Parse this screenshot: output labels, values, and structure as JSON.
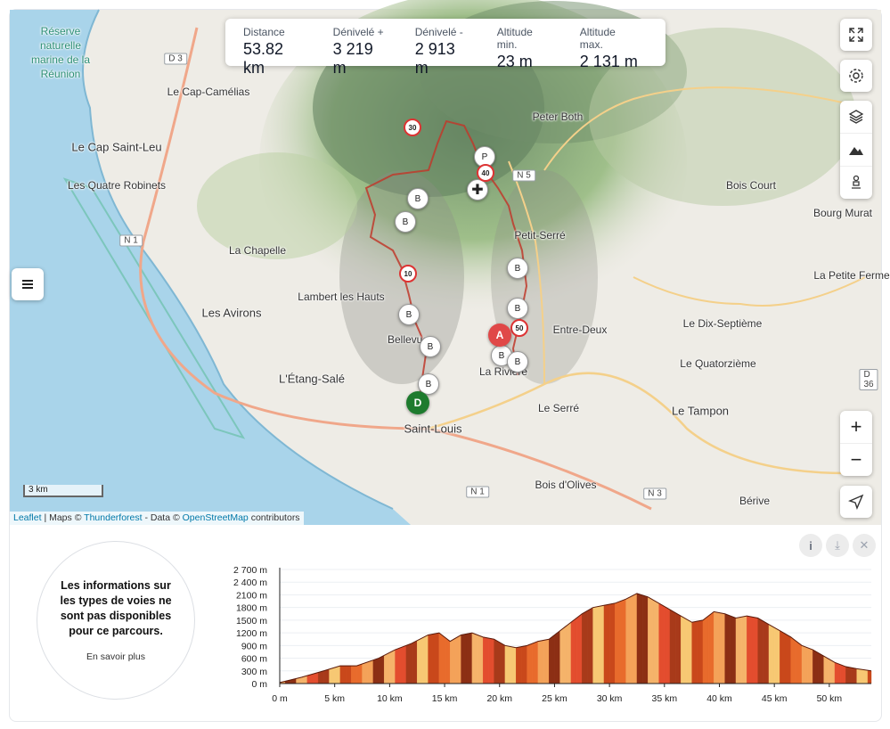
{
  "stats": [
    {
      "label": "Distance",
      "value": "53.82 km"
    },
    {
      "label": "Dénivelé +",
      "value": "3 219 m"
    },
    {
      "label": "Dénivelé -",
      "value": "2 913 m"
    },
    {
      "label": "Altitude min.",
      "value": "23 m"
    },
    {
      "label": "Altitude max.",
      "value": "2 131 m"
    }
  ],
  "places": [
    {
      "name": "Réserve naturelle marine de la Réunion",
      "kind": "reserve"
    },
    {
      "name": "Le Cap-Camélias"
    },
    {
      "name": "Le Cap Saint-Leu"
    },
    {
      "name": "Les Quatre Robinets"
    },
    {
      "name": "La Chapelle"
    },
    {
      "name": "Lambert les Hauts"
    },
    {
      "name": "Les Avirons"
    },
    {
      "name": "L'Étang-Salé"
    },
    {
      "name": "Saint-Louis"
    },
    {
      "name": "Bellevue"
    },
    {
      "name": "La Rivière"
    },
    {
      "name": "Le Serré"
    },
    {
      "name": "Entre-Deux"
    },
    {
      "name": "Petit-Serré"
    },
    {
      "name": "Peter Both"
    },
    {
      "name": "Bois Court"
    },
    {
      "name": "Bourg Murat"
    },
    {
      "name": "La Petite Ferme"
    },
    {
      "name": "Le Dix-Septième"
    },
    {
      "name": "Le Quatorzième"
    },
    {
      "name": "Le Tampon"
    },
    {
      "name": "Bois d'Olives"
    },
    {
      "name": "Bérive"
    }
  ],
  "roads": [
    "D 3",
    "N 1",
    "N 5",
    "N 1",
    "N 3",
    "D 36"
  ],
  "map": {
    "scale_label": "3 km",
    "start_label": "D",
    "end_label": "A",
    "km_markers": [
      "10",
      "30",
      "40",
      "50"
    ],
    "attribution": {
      "leaflet": "Leaflet",
      "maps": "| Maps ©",
      "thunderforest": "Thunderforest",
      "data": "- Data ©",
      "osm": "OpenStreetMap",
      "contrib": "contributors"
    }
  },
  "controls": {
    "fullscreen": "fullscreen-icon",
    "settings": "gear-icon",
    "layers": "layers-icon",
    "relief": "mountain-icon",
    "pegman": "person-icon",
    "zoom_in": "+",
    "zoom_out": "−",
    "locate": "navigation-arrow-icon",
    "menu": "menu-icon"
  },
  "info": {
    "message": "Les informations sur les types de voies ne sont pas disponibles pour ce parcours.",
    "more": "En savoir plus"
  },
  "panel_buttons": {
    "info": "i",
    "download": "⤓",
    "close": "✕"
  },
  "chart_data": {
    "type": "area",
    "title": "",
    "xlabel": "",
    "ylabel": "",
    "x_unit": "km",
    "y_unit": "m",
    "xlim": [
      0,
      53.82
    ],
    "ylim": [
      0,
      2700
    ],
    "x_ticks": [
      "0 m",
      "5 km",
      "10 km",
      "15 km",
      "20 km",
      "25 km",
      "30 km",
      "35 km",
      "40 km",
      "45 km",
      "50 km"
    ],
    "y_ticks": [
      "0 m",
      "300 m",
      "600 m",
      "900 m",
      "1200 m",
      "1500 m",
      "1800 m",
      "2100 m",
      "2 400 m",
      "2 700 m"
    ],
    "x": [
      0,
      2,
      4,
      5.5,
      7,
      9,
      10.5,
      12,
      13.5,
      14.5,
      15.5,
      16.5,
      17.5,
      18.5,
      19.5,
      20.5,
      21.5,
      22.5,
      23.5,
      24.5,
      25.5,
      26.5,
      27.5,
      28.5,
      29.5,
      30.5,
      31.5,
      32.5,
      33.5,
      34.5,
      35.5,
      36.5,
      37.5,
      38.5,
      39.5,
      40.5,
      41.5,
      42.5,
      43.5,
      44.5,
      45.5,
      46.5,
      47.5,
      48.5,
      49.5,
      50.5,
      51.5,
      52.5,
      53.82
    ],
    "y": [
      23,
      150,
      300,
      420,
      420,
      600,
      800,
      950,
      1150,
      1200,
      1000,
      1150,
      1200,
      1100,
      1050,
      900,
      850,
      900,
      1000,
      1050,
      1250,
      1450,
      1650,
      1800,
      1850,
      1900,
      2000,
      2131,
      2050,
      1900,
      1750,
      1600,
      1450,
      1500,
      1700,
      1650,
      1550,
      1600,
      1550,
      1400,
      1250,
      1100,
      900,
      800,
      650,
      500,
      400,
      350,
      300
    ]
  }
}
